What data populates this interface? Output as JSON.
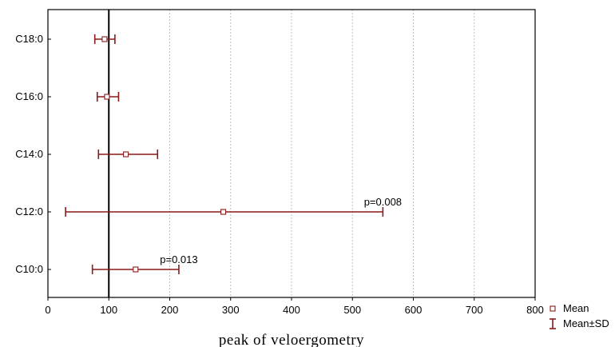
{
  "chart_data": {
    "type": "errorbar",
    "xlabel": "peak of veloergometry",
    "ylabel": "",
    "xlim": [
      0,
      800
    ],
    "x_ticks": [
      "0",
      "100",
      "200",
      "300",
      "400",
      "500",
      "600",
      "700",
      "800"
    ],
    "grid": "vertical dashed",
    "reference_line_x": 100,
    "categories": [
      "C18:0",
      "C16:0",
      "C14:0",
      "C12:0",
      "C10:0"
    ],
    "series": [
      {
        "mean": [
          93,
          97,
          128,
          288,
          144
        ],
        "lower": [
          77,
          81,
          83,
          29,
          73
        ],
        "upper": [
          110,
          116,
          180,
          550,
          215
        ]
      }
    ],
    "annotations": [
      {
        "category": "C12:0",
        "text": "p=0.008"
      },
      {
        "category": "C10:0",
        "text": "p=0.013"
      }
    ],
    "legend": {
      "position": "bottom-right",
      "items": [
        {
          "label": "Mean",
          "marker": "square"
        },
        {
          "label": "Mean±SD",
          "marker": "errorbar"
        }
      ]
    },
    "colors": {
      "series": "#8b1a1a",
      "axis": "#000000",
      "grid": "#b0b0b0"
    }
  }
}
